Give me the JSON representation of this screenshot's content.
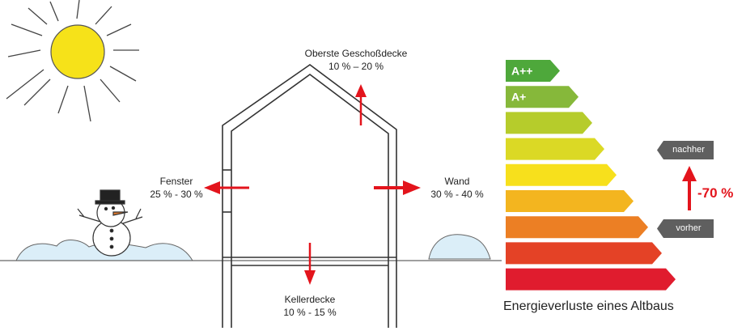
{
  "losses": {
    "roof": {
      "name": "Oberste Geschoßdecke",
      "range": "10 % – 20 %"
    },
    "window": {
      "name": "Fenster",
      "range": "25 % - 30 %"
    },
    "wall": {
      "name": "Wand",
      "range": "30 % - 40 %"
    },
    "cellar": {
      "name": "Kellerdecke",
      "range": "10 % - 15 %"
    }
  },
  "energy_scale": {
    "caption": "Energieverluste eines Altbaus",
    "classes": [
      {
        "label": "A++",
        "color": "#4ea83b",
        "relative_length": 0.32
      },
      {
        "label": "A+",
        "color": "#86b83a",
        "relative_length": 0.43
      },
      {
        "label": "",
        "color": "#b6cc2b",
        "relative_length": 0.51
      },
      {
        "label": "",
        "color": "#dbd925",
        "relative_length": 0.58
      },
      {
        "label": "",
        "color": "#f7e01c",
        "relative_length": 0.65
      },
      {
        "label": "",
        "color": "#f3b51f",
        "relative_length": 0.75
      },
      {
        "label": "",
        "color": "#ec7f24",
        "relative_length": 0.84
      },
      {
        "label": "",
        "color": "#e44226",
        "relative_length": 0.92
      },
      {
        "label": "",
        "color": "#e01c2e",
        "relative_length": 1.0
      }
    ],
    "after_label": "nachher",
    "before_label": "vorher",
    "saving": "-70 %"
  },
  "colors": {
    "arrow": "#e3141c",
    "tag": "#5f5f5f",
    "sun": "#f6e219",
    "snow": "#dbeef8"
  }
}
